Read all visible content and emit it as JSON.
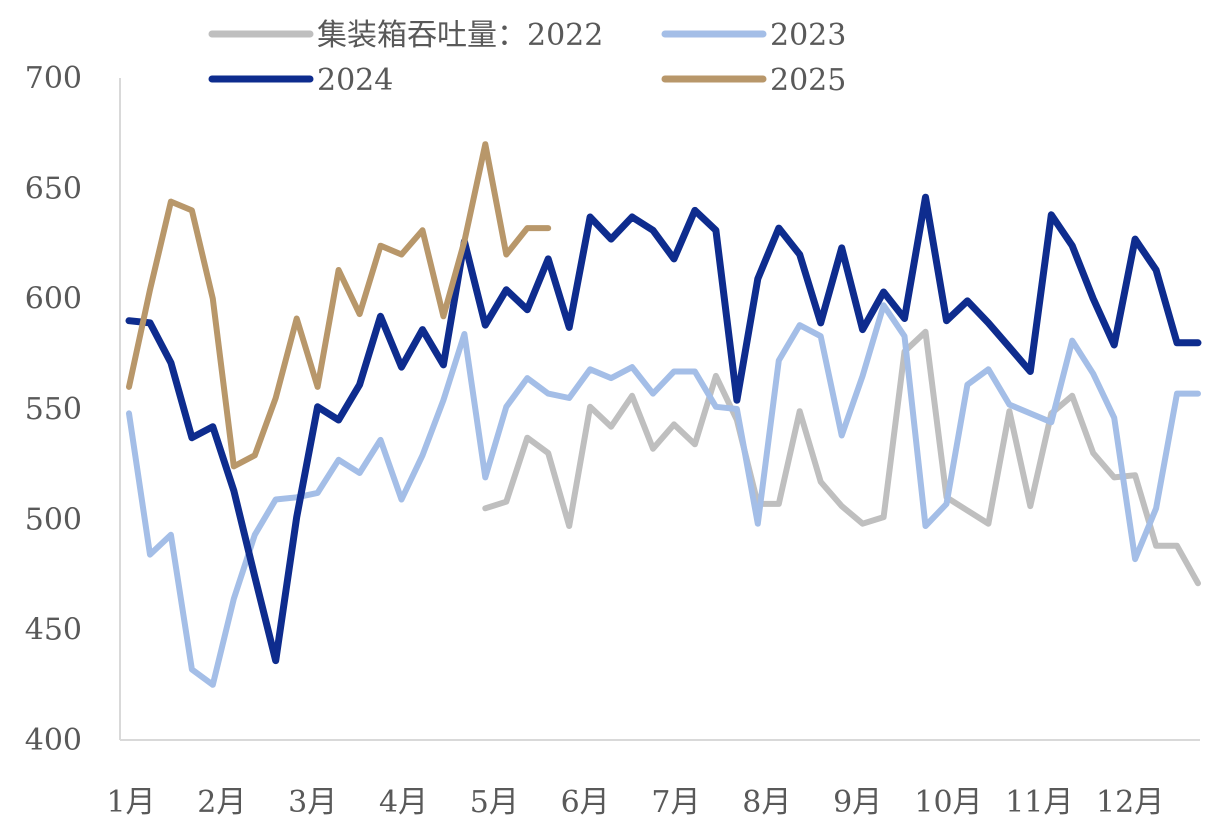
{
  "chart_data": {
    "type": "line",
    "title": "",
    "xlabel": "",
    "ylabel": "",
    "ylim": [
      400,
      700
    ],
    "yticks": [
      400,
      450,
      500,
      550,
      600,
      650,
      700
    ],
    "x_ticks": [
      "1月",
      "2月",
      "3月",
      "4月",
      "5月",
      "6月",
      "7月",
      "8月",
      "9月",
      "10月",
      "11月",
      "12月"
    ],
    "x_range": [
      1,
      52
    ],
    "grid": false,
    "legend": "top",
    "series": [
      {
        "name": "集装箱吞吐量：2022",
        "color": "#BFBFBF",
        "x": [
          18,
          19,
          20,
          21,
          22,
          23,
          24,
          25,
          26,
          27,
          28,
          29,
          30,
          31,
          32,
          33,
          34,
          35,
          36,
          37,
          38,
          39,
          40,
          41,
          42,
          43,
          44,
          45,
          46,
          47,
          48,
          49,
          50,
          51,
          52
        ],
        "values": [
          505,
          508,
          537,
          530,
          497,
          551,
          542,
          556,
          532,
          543,
          534,
          565,
          545,
          507,
          507,
          549,
          517,
          506,
          498,
          501,
          576,
          585,
          510,
          504,
          498,
          549,
          506,
          548,
          556,
          530,
          519,
          520,
          488,
          488,
          471
        ]
      },
      {
        "name": "2023",
        "color": "#A4BEE7",
        "x": [
          1,
          2,
          3,
          4,
          5,
          6,
          7,
          8,
          9,
          10,
          11,
          12,
          13,
          14,
          15,
          16,
          17,
          18,
          19,
          20,
          21,
          22,
          23,
          24,
          25,
          26,
          27,
          28,
          29,
          30,
          31,
          32,
          33,
          34,
          35,
          36,
          37,
          38,
          39,
          40,
          41,
          42,
          43,
          44,
          45,
          46,
          47,
          48,
          49,
          50,
          51,
          52
        ],
        "values": [
          548,
          484,
          493,
          432,
          425,
          464,
          493,
          509,
          510,
          512,
          527,
          521,
          536,
          509,
          529,
          554,
          584,
          519,
          551,
          564,
          557,
          555,
          568,
          564,
          569,
          557,
          567,
          567,
          551,
          550,
          498,
          572,
          588,
          583,
          538,
          565,
          597,
          583,
          497,
          507,
          561,
          568,
          552,
          548,
          544,
          581,
          566,
          546,
          482,
          505,
          557,
          557
        ],
        "values_trim": 52
      },
      {
        "name": "2024",
        "color": "#0E2C8E",
        "x": [
          1,
          2,
          3,
          4,
          5,
          6,
          7,
          8,
          9,
          10,
          11,
          12,
          13,
          14,
          15,
          16,
          17,
          18,
          19,
          20,
          21,
          22,
          23,
          24,
          25,
          26,
          27,
          28,
          29,
          30,
          31,
          32,
          33,
          34,
          35,
          36,
          37,
          38,
          39,
          40,
          41,
          42,
          43,
          44,
          45,
          46,
          47,
          48,
          49,
          50,
          51,
          52
        ],
        "values": [
          590,
          589,
          571,
          537,
          542,
          513,
          474,
          436,
          501,
          551,
          545,
          561,
          592,
          569,
          586,
          570,
          626,
          588,
          604,
          595,
          618,
          587,
          637,
          627,
          637,
          631,
          618,
          640,
          631,
          554,
          609,
          632,
          620,
          589,
          623,
          586,
          603,
          591,
          646,
          590,
          599,
          589,
          578,
          567,
          638,
          624,
          600,
          579,
          627,
          613,
          580,
          580
        ]
      },
      {
        "name": "2025",
        "color": "#B8976A",
        "x": [
          1,
          2,
          3,
          4,
          5,
          6,
          7,
          8,
          9,
          10,
          11,
          12,
          13,
          14,
          15,
          16,
          17,
          18,
          19,
          20,
          21
        ],
        "values": [
          560,
          604,
          644,
          640,
          600,
          524,
          529,
          555,
          591,
          560,
          613,
          593,
          624,
          620,
          631,
          592,
          626,
          670,
          620,
          632,
          632
        ]
      }
    ]
  }
}
